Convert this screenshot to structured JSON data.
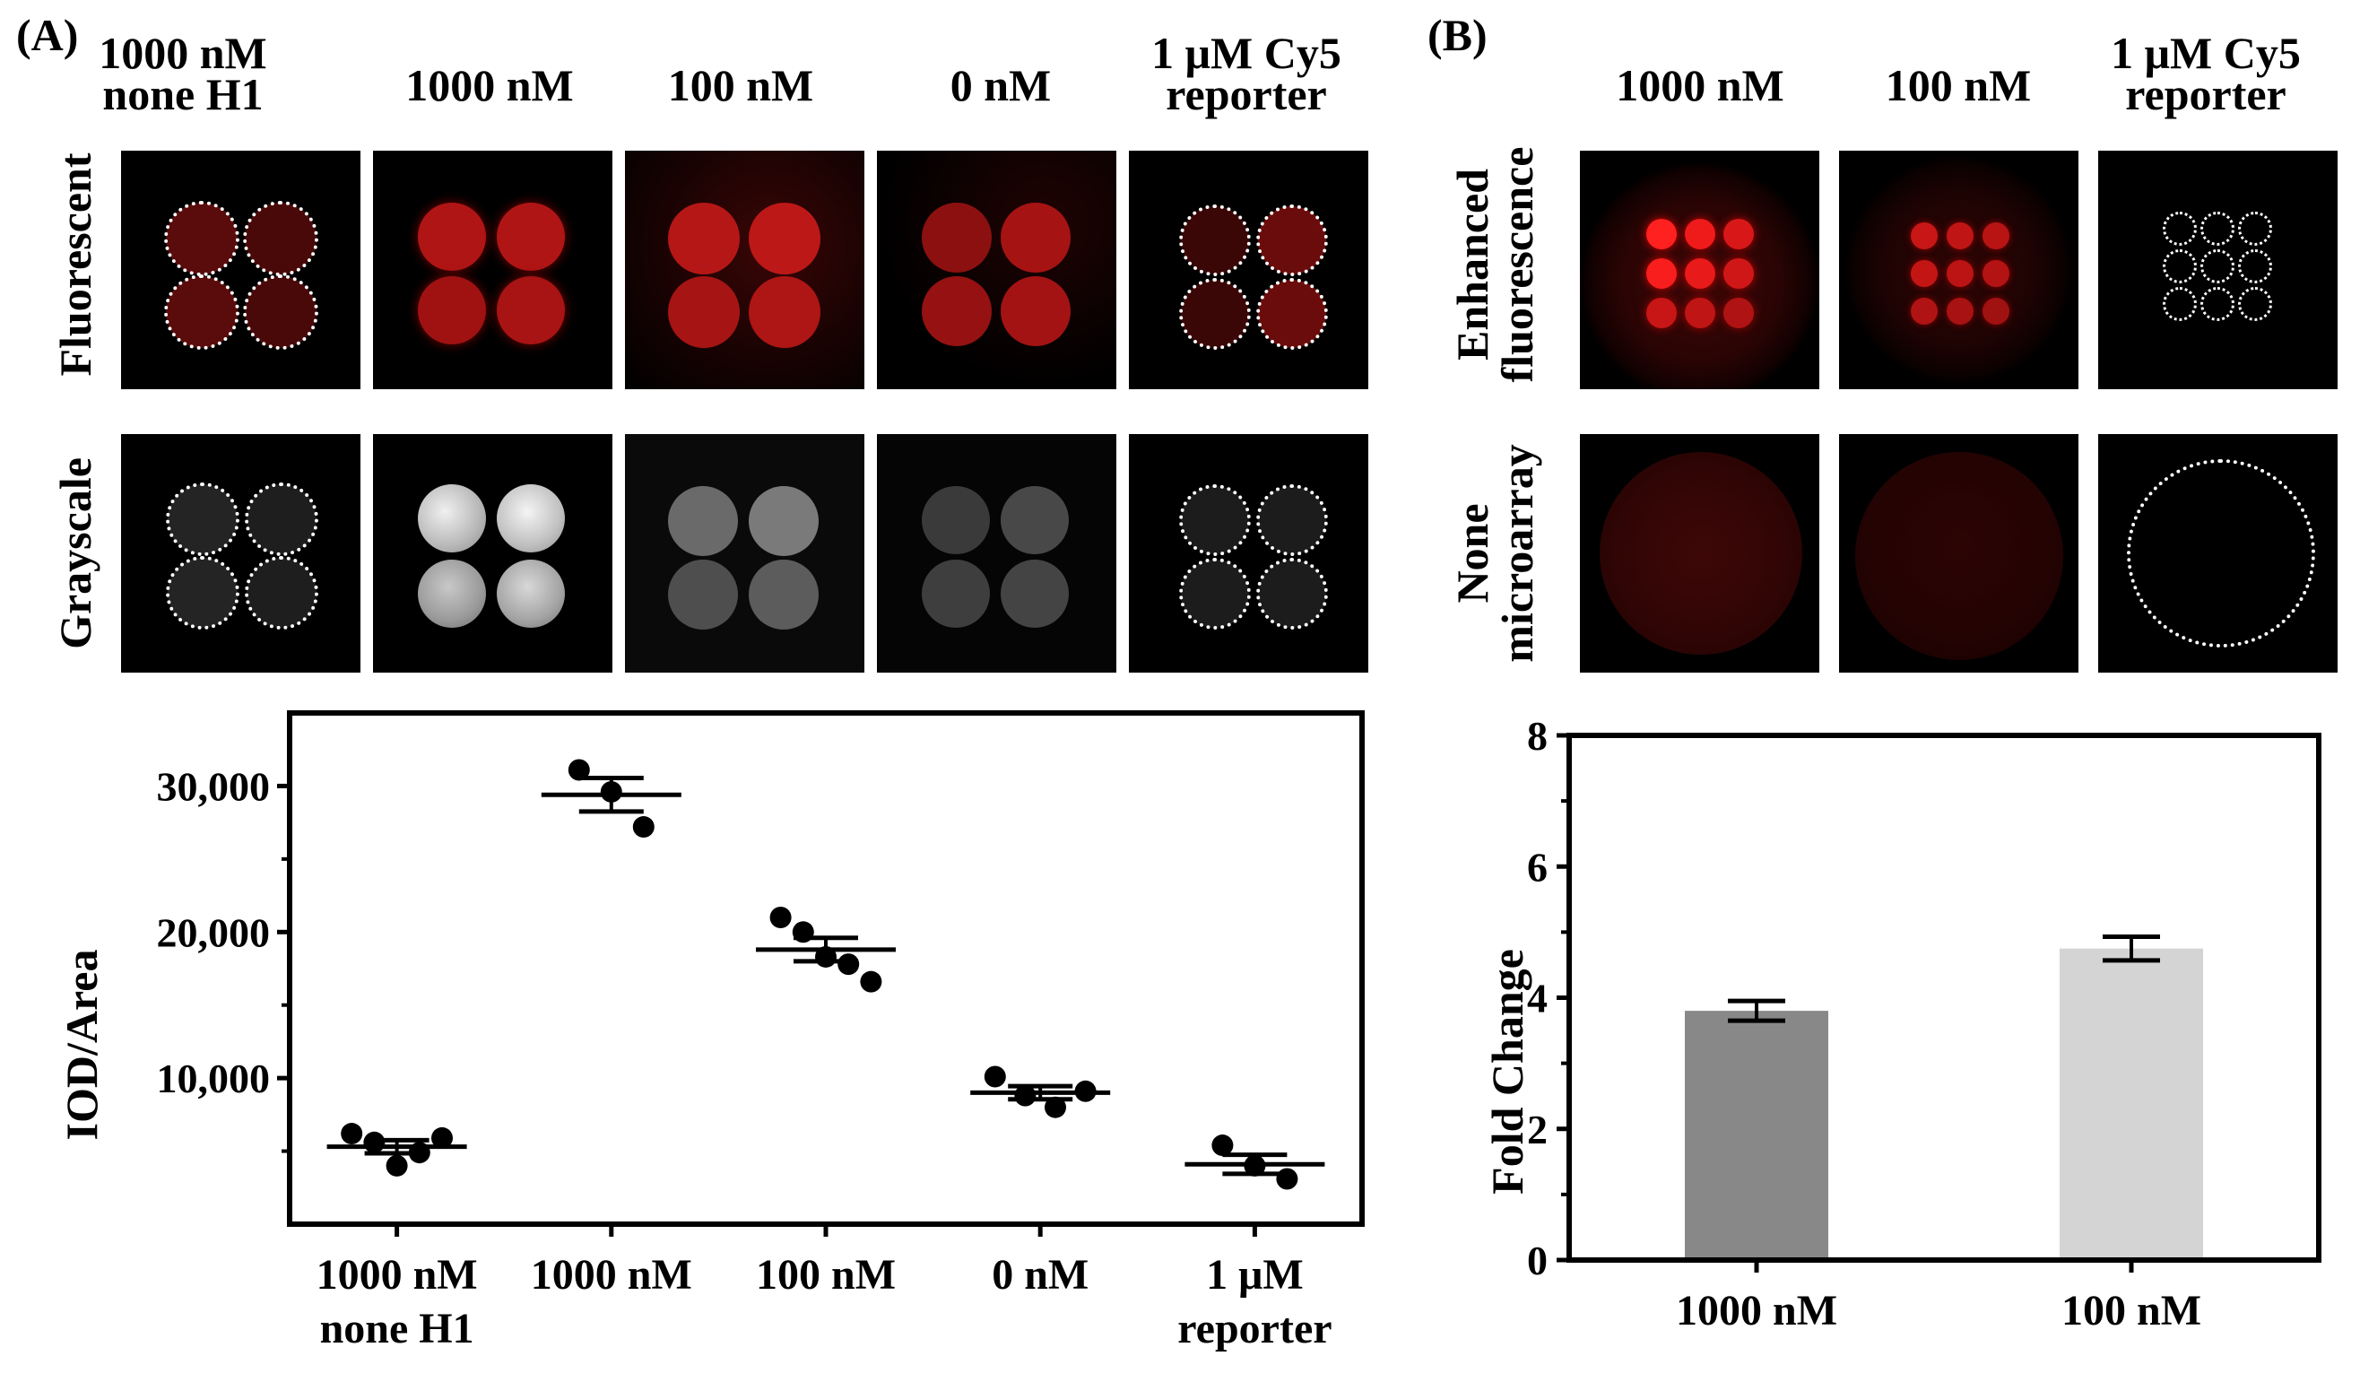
{
  "panel_a": {
    "label": "(A)",
    "columns": [
      {
        "line1": "1000 nM",
        "line2": "none H1"
      },
      {
        "line1": "1000 nM",
        "line2": ""
      },
      {
        "line1": "100 nM",
        "line2": ""
      },
      {
        "line1": "0 nM",
        "line2": ""
      },
      {
        "line1": "1 μM Cy5",
        "line2": "reporter"
      }
    ],
    "rows": [
      {
        "line1": "Fluorescent",
        "line2": ""
      },
      {
        "line1": "Grayscale",
        "line2": ""
      }
    ]
  },
  "panel_b": {
    "label": "(B)",
    "columns": [
      {
        "line1": "1000 nM",
        "line2": ""
      },
      {
        "line1": "100 nM",
        "line2": ""
      },
      {
        "line1": "1 μM Cy5",
        "line2": "reporter"
      }
    ],
    "rows": [
      {
        "line1": "Enhanced",
        "line2": "fluorescence"
      },
      {
        "line1": "None",
        "line2": "microarray"
      }
    ]
  },
  "chart_data": [
    {
      "type": "scatter",
      "title": "",
      "ylabel": "IOD/Area",
      "xlabel": "",
      "ylim": [
        0,
        35000
      ],
      "yticks": [
        10000,
        20000,
        30000
      ],
      "ytick_labels": [
        "10,000",
        "20,000",
        "30,000"
      ],
      "categories": [
        {
          "line1": "1000 nM",
          "line2": "none H1"
        },
        {
          "line1": "1000 nM",
          "line2": ""
        },
        {
          "line1": "100 nM",
          "line2": ""
        },
        {
          "line1": "0 nM",
          "line2": ""
        },
        {
          "line1": "1 μM",
          "line2": "reporter"
        }
      ],
      "points": [
        [
          6200,
          5600,
          4000,
          4900,
          5900
        ],
        [
          31100,
          29600,
          27200
        ],
        [
          21000,
          20000,
          18300,
          17800,
          16600
        ],
        [
          10100,
          8800,
          8000,
          9100
        ],
        [
          5400,
          4000,
          3100
        ]
      ],
      "mean": [
        5300,
        29400,
        18800,
        9000,
        4100
      ],
      "sem": [
        450,
        1150,
        800,
        450,
        650
      ]
    },
    {
      "type": "bar",
      "title": "",
      "ylabel": "Fold Change",
      "xlabel": "",
      "ylim": [
        0,
        8
      ],
      "yticks": [
        0,
        2,
        4,
        6,
        8
      ],
      "categories": [
        "1000 nM",
        "100 nM"
      ],
      "values": [
        3.8,
        4.75
      ],
      "sem": [
        0.15,
        0.18
      ],
      "colors": [
        "#888888",
        "#d4d4d4"
      ]
    }
  ]
}
